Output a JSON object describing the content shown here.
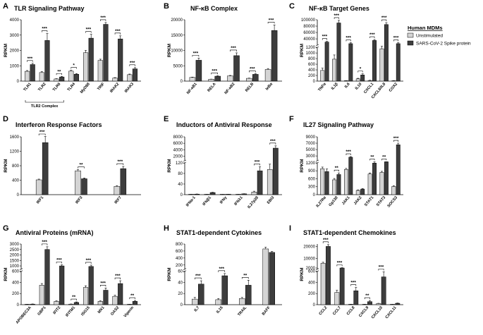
{
  "legend": {
    "title": "Human MDMs",
    "entries": [
      {
        "name": "Unstimulated",
        "color": "#d4d4d4"
      },
      {
        "name": "SARS-CoV-2 Spike protein",
        "color": "#3d3d3d"
      }
    ]
  },
  "chart_data": [
    {
      "type": "bar",
      "letter": "A",
      "title": "TLR Signaling Pathway",
      "ylabel": "RPKM",
      "yticks": [
        0,
        1000,
        2000,
        3000,
        4000
      ],
      "ylim": [
        0,
        4000
      ],
      "categories": [
        "TLR1",
        "TLR2",
        "TLR6",
        "TLR4",
        "MyD88",
        "TRIF",
        "IRAK2",
        "IRAK3"
      ],
      "series": [
        {
          "name": "Unstimulated",
          "values": [
            640,
            560,
            140,
            650,
            1850,
            1350,
            200,
            420
          ]
        },
        {
          "name": "SARS-CoV-2 Spike protein",
          "values": [
            1080,
            2650,
            270,
            450,
            2800,
            3700,
            2750,
            800
          ]
        }
      ],
      "errors": [
        [
          50,
          60,
          20,
          60,
          150,
          80,
          30,
          40
        ],
        [
          80,
          450,
          40,
          40,
          250,
          120,
          200,
          80
        ]
      ],
      "significance": [
        "***",
        "***",
        "**",
        "*",
        "***",
        "***",
        "***",
        "***"
      ],
      "group_bracket": {
        "label": "TLR2 Complex",
        "from": 0,
        "to": 2
      }
    },
    {
      "type": "bar",
      "letter": "B",
      "title": "NF-κB Complex",
      "ylabel": "RPKM",
      "yticks": [
        0,
        5000,
        10000,
        15000,
        20000
      ],
      "ylim": [
        0,
        20000
      ],
      "categories": [
        "NF-κB1",
        "RELA",
        "NF-κB2",
        "RELB",
        "IκBα"
      ],
      "series": [
        {
          "name": "Unstimulated",
          "values": [
            1200,
            600,
            1700,
            900,
            3800
          ]
        },
        {
          "name": "SARS-CoV-2 Spike protein",
          "values": [
            6800,
            1600,
            8300,
            2200,
            16500
          ]
        }
      ],
      "errors": [
        [
          100,
          60,
          150,
          80,
          300
        ],
        [
          700,
          150,
          900,
          200,
          1800
        ]
      ],
      "significance": [
        "***",
        "***",
        "***",
        "***",
        "***"
      ]
    },
    {
      "type": "bar",
      "letter": "C",
      "title": "NF-κB Target Genes",
      "ylabel": "RPKM",
      "yticks": [
        0,
        200,
        400,
        600,
        800,
        1000,
        1200,
        40000,
        60000,
        80000,
        100000
      ],
      "broken_axis": {
        "low": [
          0,
          1200
        ],
        "high": [
          20000,
          100000
        ]
      },
      "categories": [
        "TNFα",
        "IL1β",
        "IL6",
        "IL10",
        "CXCL1",
        "CXCL8/IL8",
        "COX2"
      ],
      "series": [
        {
          "name": "Unstimulated",
          "values": [
            380,
            780,
            10,
            80,
            20,
            1150,
            15
          ]
        },
        {
          "name": "SARS-CoV-2 Spike protein",
          "values": [
            30000,
            90000,
            25000,
            220,
            35000,
            85000,
            25000
          ]
        }
      ],
      "errors": [
        [
          80,
          150,
          5,
          20,
          10,
          100,
          5
        ],
        [
          2000,
          8000,
          3000,
          40,
          3000,
          6000,
          3000
        ]
      ],
      "significance": [
        "***",
        "***",
        "***",
        "*",
        "***",
        "***",
        "***"
      ]
    },
    {
      "type": "bar",
      "letter": "D",
      "title": "Interferon Response Factors",
      "ylabel": "RPKM",
      "yticks": [
        0,
        400,
        800,
        1200,
        1600
      ],
      "ylim": [
        0,
        1600
      ],
      "categories": [
        "IRF1",
        "IRF3",
        "IRF7"
      ],
      "series": [
        {
          "name": "Unstimulated",
          "values": [
            410,
            660,
            230
          ]
        },
        {
          "name": "SARS-CoV-2 Spike protein",
          "values": [
            1440,
            440,
            720
          ]
        }
      ],
      "errors": [
        [
          20,
          30,
          20
        ],
        [
          170,
          20,
          60
        ]
      ],
      "significance": [
        "***",
        "**",
        "***"
      ]
    },
    {
      "type": "bar",
      "letter": "E",
      "title": "Inductors of Antiviral Response",
      "ylabel": "RPKM",
      "yticks": [
        0,
        40,
        80,
        120,
        2000,
        4000,
        6000,
        8000
      ],
      "broken_axis": {
        "low": [
          0,
          120
        ],
        "high": [
          600,
          8000
        ]
      },
      "categories": [
        "IFNα-1",
        "IFNβ1",
        "IFNγ",
        "IFNλ1",
        "IL27p28",
        "EBI3"
      ],
      "series": [
        {
          "name": "Unstimulated",
          "values": [
            0.5,
            0.5,
            0.3,
            0.5,
            10,
            95
          ]
        },
        {
          "name": "SARS-CoV-2 Spike protein",
          "values": [
            2,
            8,
            1,
            3,
            90,
            4500
          ]
        }
      ],
      "errors": [
        [
          0.2,
          0.2,
          0.1,
          0.2,
          3,
          20
        ],
        [
          0.5,
          1,
          0.3,
          0.5,
          15,
          700
        ]
      ],
      "significance": [
        "",
        "",
        "",
        "",
        "***",
        "***"
      ]
    },
    {
      "type": "bar",
      "letter": "F",
      "title": "IL27 Signaling Pathway",
      "ylabel": "RPKM",
      "yticks": [
        0,
        300,
        600,
        900,
        1200,
        3000,
        5000,
        7000,
        9000
      ],
      "broken_axis": {
        "low": [
          0,
          1200
        ],
        "high": [
          1500,
          9000
        ]
      },
      "categories": [
        "IL27Rα",
        "Gp130",
        "JAK1",
        "JAK2",
        "STAT1",
        "STAT3",
        "SOCS3"
      ],
      "series": [
        {
          "name": "Unstimulated",
          "values": [
            980,
            560,
            950,
            160,
            780,
            840,
            310
          ]
        },
        {
          "name": "SARS-CoV-2 Spike protein",
          "values": [
            870,
            760,
            2600,
            210,
            1190,
            1250,
            6500
          ]
        }
      ],
      "errors": [
        [
          60,
          50,
          40,
          20,
          40,
          40,
          30
        ],
        [
          100,
          60,
          200,
          20,
          80,
          80,
          500
        ]
      ],
      "significance": [
        "",
        "**",
        "***",
        "",
        "**",
        "**",
        "***"
      ]
    },
    {
      "type": "bar",
      "letter": "G",
      "title": "Antiviral Proteins (mRNA)",
      "ylabel": "RPKM",
      "yticks": [
        0,
        200,
        400,
        600,
        1000,
        1500,
        2000,
        2500,
        3000
      ],
      "broken_axis": {
        "low": [
          0,
          600
        ],
        "high": [
          700,
          3000
        ]
      },
      "categories": [
        "APOBEC3A",
        "GBP1",
        "IFIT2",
        "IFITM1",
        "ISG15",
        "MX1",
        "OAS2",
        "Viperin"
      ],
      "series": [
        {
          "name": "Unstimulated",
          "values": [
            5,
            350,
            60,
            10,
            310,
            60,
            150,
            5
          ]
        },
        {
          "name": "SARS-CoV-2 Spike protein",
          "values": [
            10,
            2500,
            1000,
            40,
            950,
            260,
            380,
            60
          ]
        }
      ],
      "errors": [
        [
          2,
          30,
          10,
          3,
          30,
          10,
          20,
          2
        ],
        [
          3,
          250,
          100,
          10,
          120,
          40,
          50,
          15
        ]
      ],
      "significance": [
        "",
        "***",
        "***",
        "**",
        "***",
        "***",
        "***",
        "**"
      ]
    },
    {
      "type": "bar",
      "letter": "H",
      "title": "STAT1-dependent Cytokines",
      "ylabel": "RPKM",
      "yticks": [
        0,
        20,
        40,
        60,
        200,
        400,
        600,
        800
      ],
      "broken_axis": {
        "low": [
          0,
          60
        ],
        "high": [
          80,
          800
        ]
      },
      "categories": [
        "IL7",
        "IL15",
        "TRAIL",
        "BAFF"
      ],
      "series": [
        {
          "name": "Unstimulated",
          "values": [
            10,
            9,
            11,
            660
          ]
        },
        {
          "name": "SARS-CoV-2 Spike protein",
          "values": [
            37,
            52,
            35,
            560
          ]
        }
      ],
      "errors": [
        [
          3,
          2,
          2,
          50
        ],
        [
          6,
          4,
          9,
          30
        ]
      ],
      "significance": [
        "***",
        "***",
        "**",
        ""
      ]
    },
    {
      "type": "bar",
      "letter": "I",
      "title": "STAT1-dependent Chemokines",
      "ylabel": "RPKM",
      "yticks": [
        0,
        200,
        400,
        600,
        2000,
        10000,
        20000
      ],
      "broken_axis": {
        "low": [
          0,
          600
        ],
        "high": [
          1000,
          22000
        ]
      },
      "categories": [
        "CCL2",
        "CCL7",
        "CCL8",
        "CXCL9",
        "CXCL10",
        "CXCL11"
      ],
      "series": [
        {
          "name": "Unstimulated",
          "values": [
            6000,
            220,
            5,
            5,
            20,
            3
          ]
        },
        {
          "name": "SARS-CoV-2 Spike protein",
          "values": [
            20000,
            2000,
            250,
            55,
            500,
            25
          ]
        }
      ],
      "errors": [
        [
          800,
          40,
          2,
          2,
          5,
          1
        ],
        [
          1500,
          300,
          60,
          20,
          90,
          5
        ]
      ],
      "significance": [
        "***",
        "***",
        "***",
        "**",
        "***",
        ""
      ]
    }
  ]
}
